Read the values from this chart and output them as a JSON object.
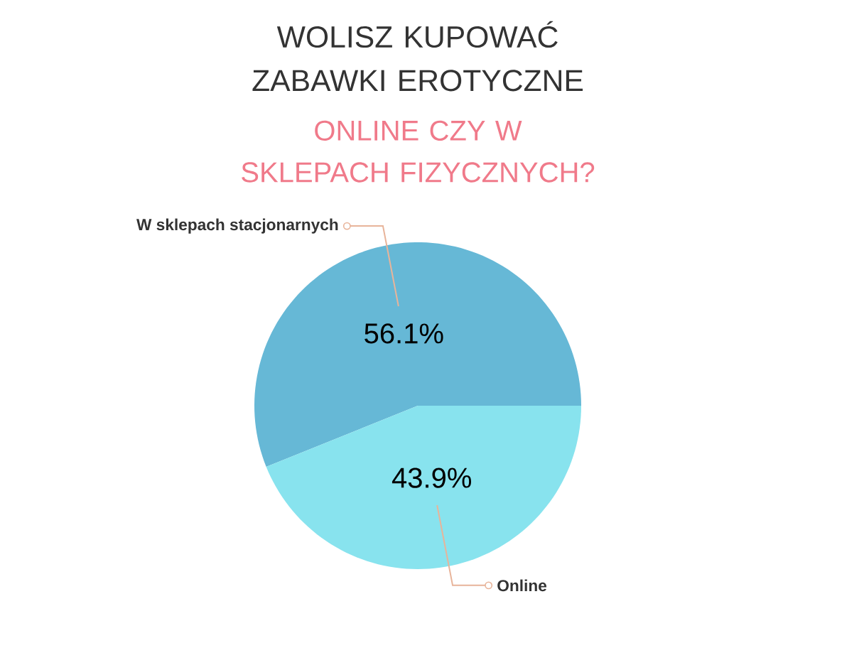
{
  "chart_data": {
    "type": "pie",
    "title": "WOLISZ KUPOWAĆ ZABAWKI EROTYCZNE",
    "subtitle": "ONLINE CZY W SKLEPACH FIZYCZNYCH?",
    "categories": [
      "W sklepach stacjonarnych",
      "Online"
    ],
    "values": [
      56.1,
      43.9
    ],
    "colors": [
      "#66b8d6",
      "#88e3ee"
    ],
    "value_labels": [
      "56.1%",
      "43.9%"
    ]
  }
}
